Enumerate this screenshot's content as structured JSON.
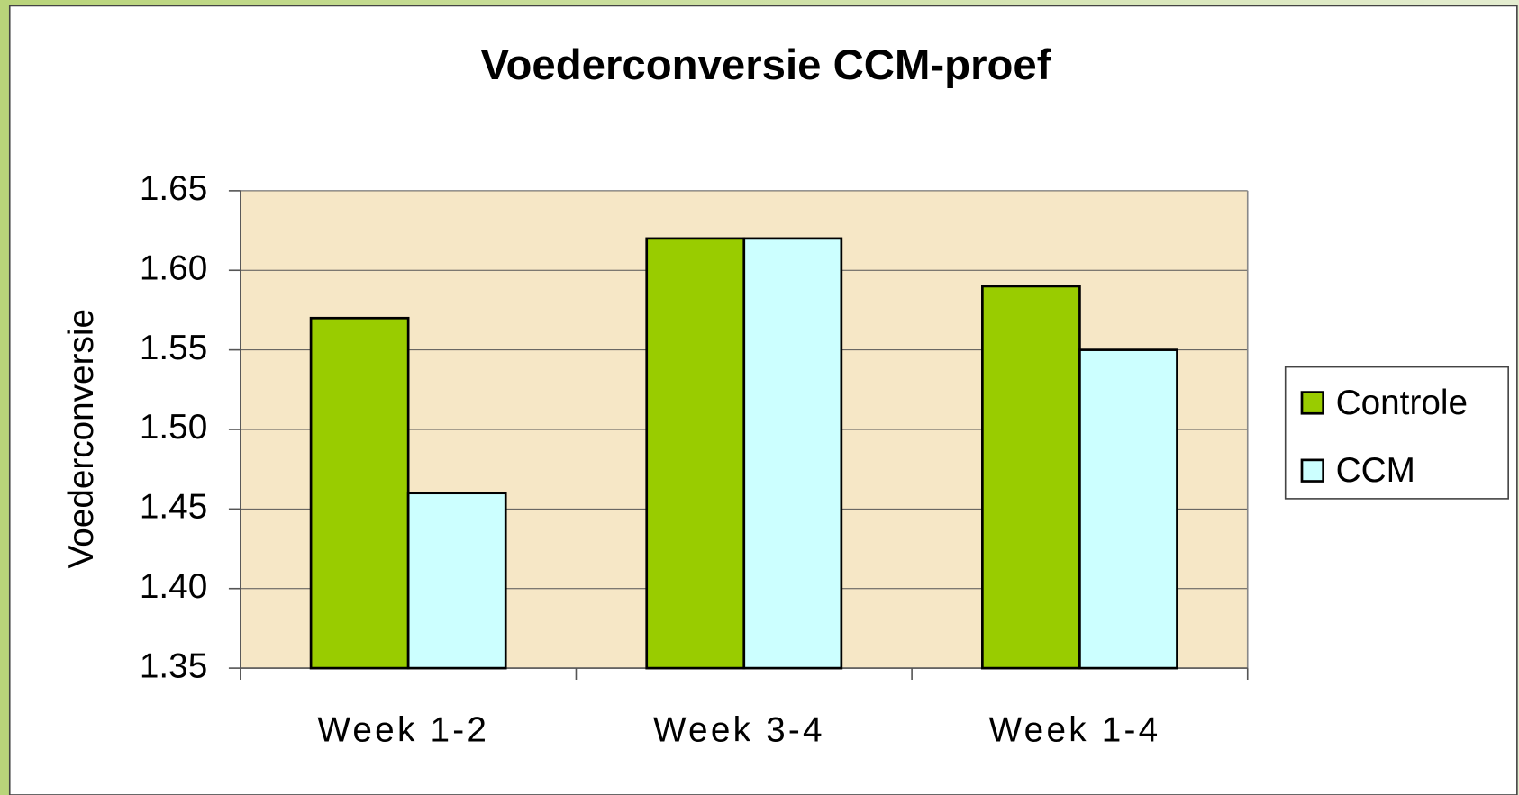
{
  "chart_data": {
    "type": "bar",
    "title": "Voederconversie CCM-proef",
    "y_label": "Voederconversie",
    "categories": [
      "Week 1-2",
      "Week 3-4",
      "Week 1-4"
    ],
    "series": [
      {
        "name": "Controle",
        "color": "#99cc00",
        "values": [
          1.57,
          1.62,
          1.59
        ]
      },
      {
        "name": "CCM",
        "color": "#ccffff",
        "values": [
          1.46,
          1.62,
          1.55
        ]
      }
    ],
    "ylim": [
      1.35,
      1.65
    ],
    "yticks": [
      1.35,
      {
        "value": 1.4,
        "label": "1.40"
      },
      1.45,
      {
        "value": 1.5,
        "label": "1.50"
      },
      1.55,
      {
        "value": 1.6,
        "label": "1.60"
      },
      1.65
    ],
    "grid": true,
    "legend": "right"
  }
}
